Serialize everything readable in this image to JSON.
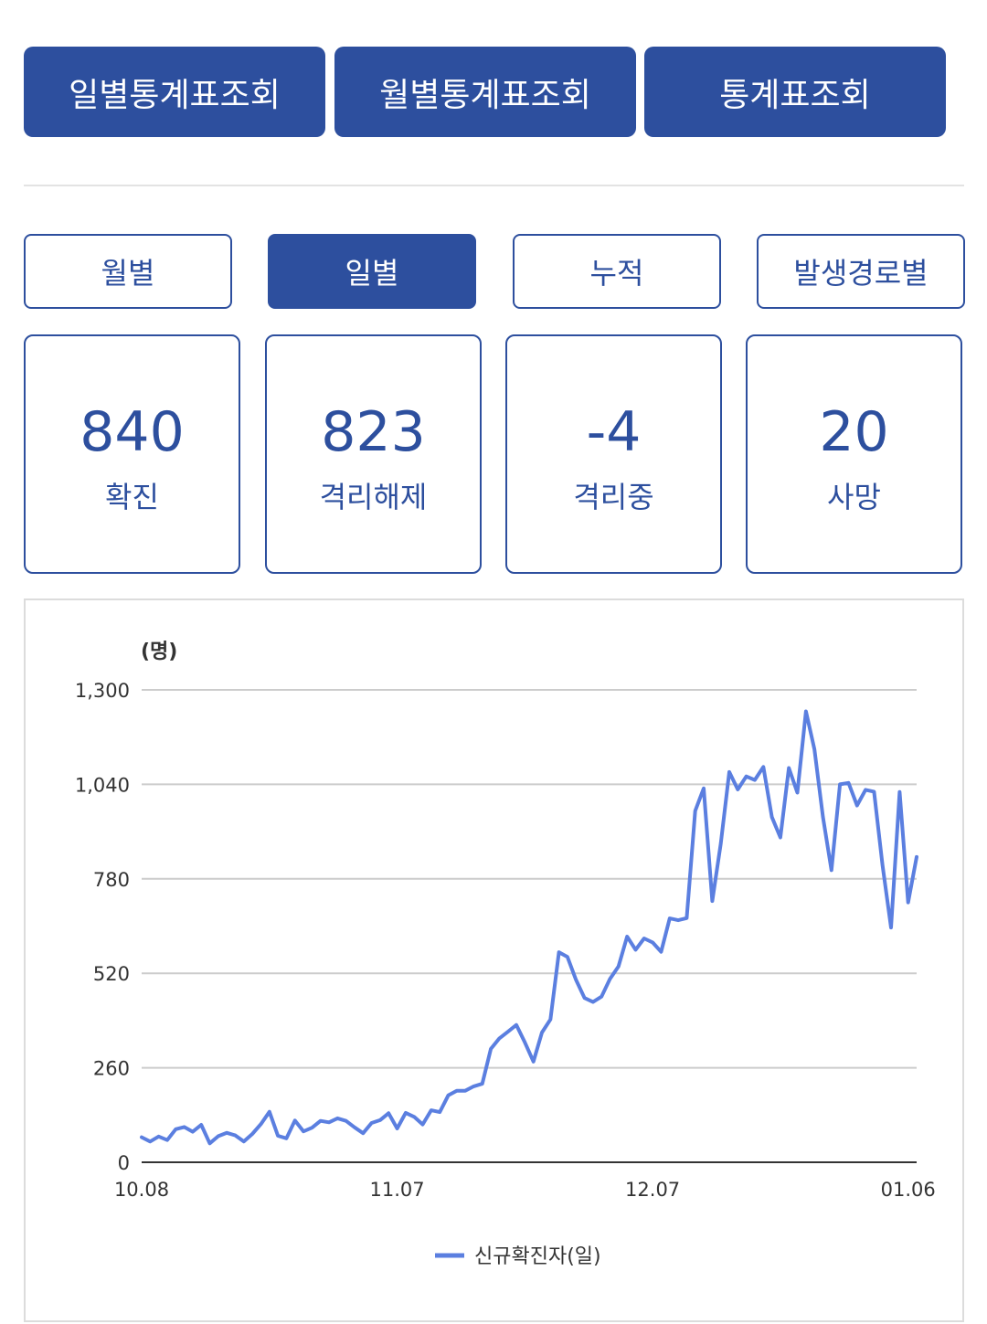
{
  "top_tabs": [
    "일별통계표조회",
    "월별통계표조회",
    "통계표조회"
  ],
  "sub_tabs": [
    {
      "label": "월별",
      "active": false
    },
    {
      "label": "일별",
      "active": true
    },
    {
      "label": "누적",
      "active": false
    },
    {
      "label": "발생경로별",
      "active": false
    }
  ],
  "stats": [
    {
      "value": "840",
      "label": "확진"
    },
    {
      "value": "823",
      "label": "격리해제"
    },
    {
      "value": "-4",
      "label": "격리중"
    },
    {
      "value": "20",
      "label": "사망"
    }
  ],
  "colors": {
    "accent": "#2d4f9e",
    "line": "#5b7fe0",
    "grid": "#cccccc"
  },
  "chart_data": {
    "type": "line",
    "unit_label": "(명)",
    "ylim": [
      0,
      1300
    ],
    "yticks": [
      "1,300",
      "1,040",
      "780",
      "520",
      "260",
      "0"
    ],
    "ytick_values": [
      1300,
      1040,
      780,
      520,
      260,
      0
    ],
    "xticks": [
      {
        "label": "10.08",
        "index": 0
      },
      {
        "label": "11.07",
        "index": 30
      },
      {
        "label": "12.07",
        "index": 60
      },
      {
        "label": "01.06",
        "index": 90
      }
    ],
    "grid": true,
    "legend": "bottom",
    "series": [
      {
        "name": "신규확진자(일)",
        "values": [
          69,
          57,
          71,
          61,
          91,
          97,
          84,
          103,
          52,
          72,
          81,
          74,
          57,
          78,
          105,
          139,
          73,
          66,
          115,
          85,
          95,
          114,
          110,
          121,
          114,
          96,
          80,
          108,
          116,
          135,
          93,
          136,
          125,
          104,
          143,
          138,
          184,
          197,
          197,
          209,
          216,
          312,
          341,
          359,
          378,
          330,
          277,
          357,
          393,
          578,
          565,
          502,
          452,
          441,
          456,
          505,
          539,
          621,
          585,
          616,
          605,
          579,
          671,
          666,
          672,
          967,
          1029,
          719,
          877,
          1074,
          1026,
          1062,
          1052,
          1088,
          950,
          894,
          1085,
          1017,
          1241,
          1136,
          950,
          804,
          1040,
          1044,
          982,
          1025,
          1020,
          817,
          646,
          1019,
          715,
          840
        ]
      }
    ]
  }
}
